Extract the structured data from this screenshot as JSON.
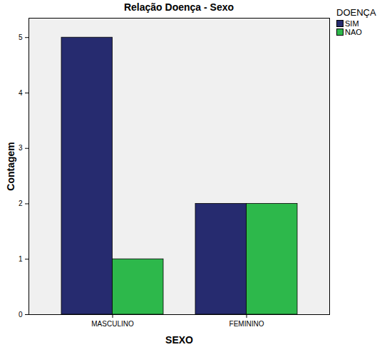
{
  "chart_data": {
    "type": "bar",
    "title": "Relação Doença - Sexo",
    "x_label": "SEXO",
    "y_label": "Contagem",
    "legend_title": "DOENÇA",
    "categories": [
      "MASCULINO",
      "FEMININO"
    ],
    "series": [
      {
        "name": "SIM",
        "color": "#262b6f",
        "values": [
          5,
          2
        ]
      },
      {
        "name": "NAO",
        "color": "#2db84b",
        "values": [
          1,
          2
        ]
      }
    ],
    "ylim": [
      0,
      5.35
    ],
    "yticks": [
      0,
      1,
      2,
      3,
      4,
      5
    ],
    "grid": false,
    "legend": "top-right"
  }
}
